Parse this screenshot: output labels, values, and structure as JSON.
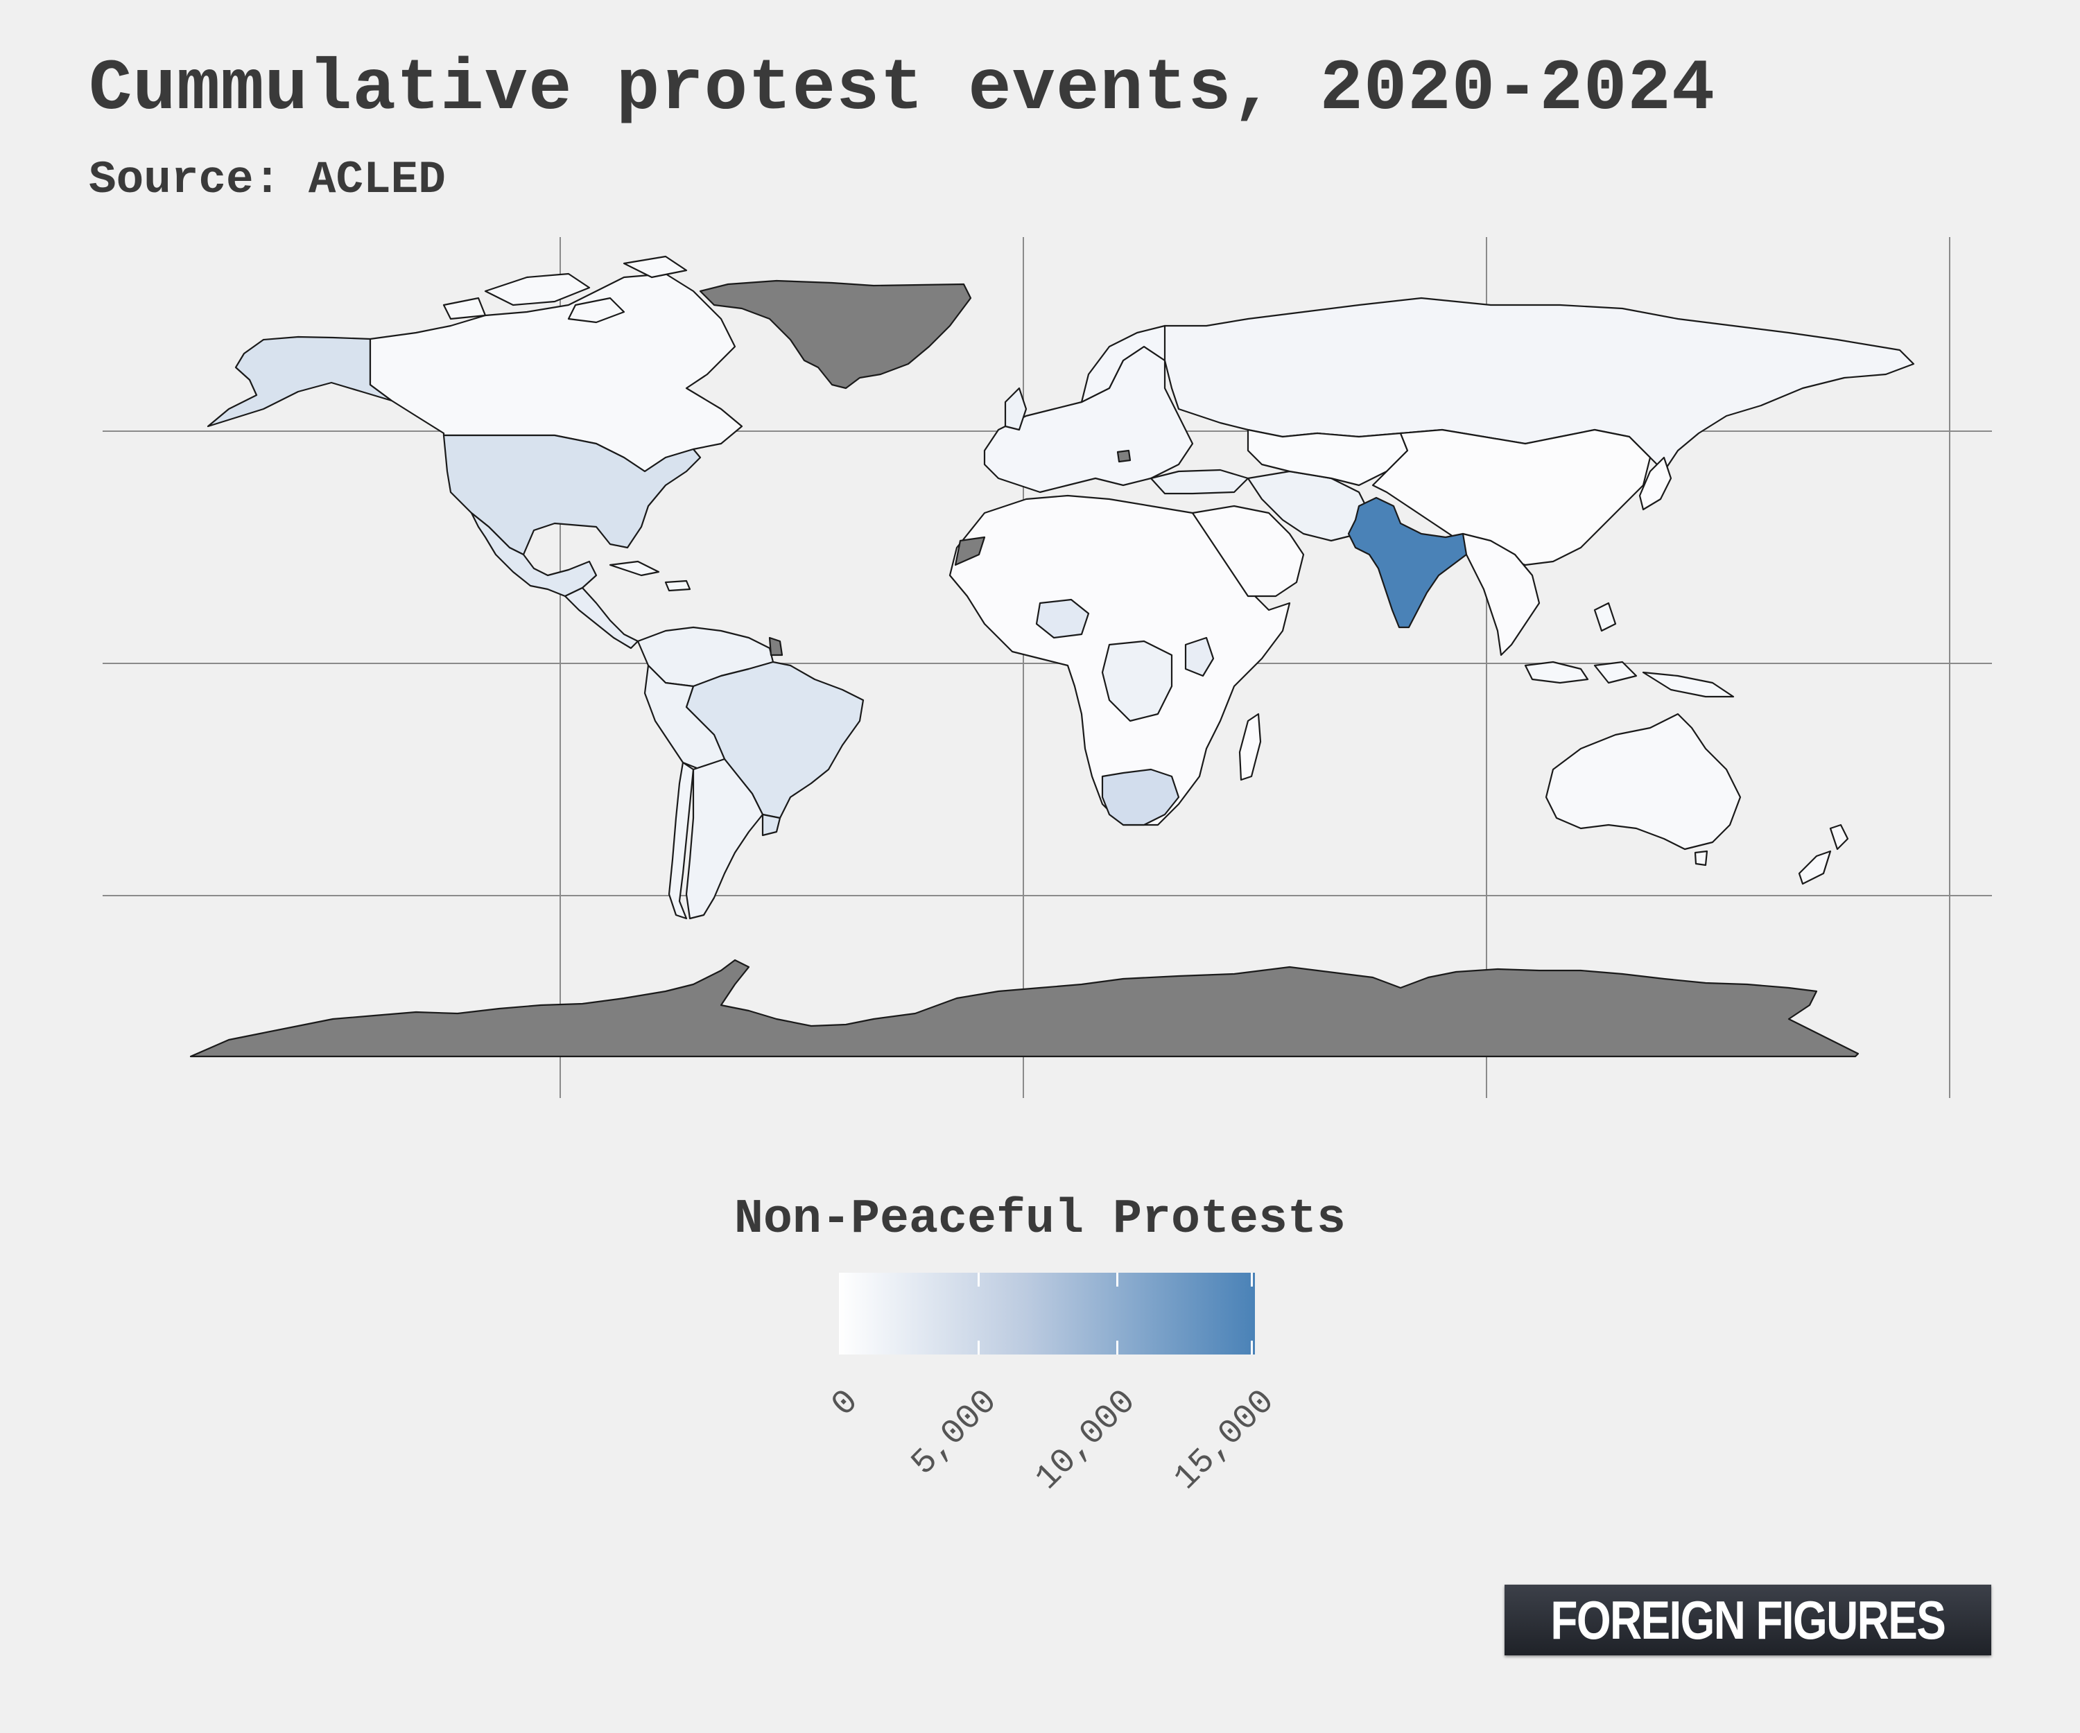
{
  "title": "Cummulative protest events, 2020-2024",
  "subtitle": "Source: ACLED",
  "legend": {
    "title": "Non-Peaceful Protests",
    "ticks": [
      "0",
      "5,000",
      "10,000",
      "15,000"
    ],
    "tick_values": [
      0,
      5000,
      10000,
      15000
    ],
    "range": [
      0,
      15000
    ],
    "color_low": "#ffffff",
    "color_high": "#4a82b7"
  },
  "map": {
    "projection": "equirectangular",
    "no_data_color": "#7f7f7f",
    "land_outline_color": "#1a1a1a",
    "graticule_color": "#888888",
    "regions": [
      {
        "name": "India",
        "level": "highest",
        "color": "#4a82b7"
      },
      {
        "name": "United States",
        "level": "low",
        "color": "#d8e2ee"
      },
      {
        "name": "Brazil",
        "level": "low",
        "color": "#dde6f1"
      },
      {
        "name": "South Africa",
        "level": "low",
        "color": "#d2dded"
      },
      {
        "name": "Mexico",
        "level": "low",
        "color": "#e0e8f2"
      },
      {
        "name": "Alaska",
        "level": "low",
        "color": "#d8e2ee"
      },
      {
        "name": "Argentina",
        "level": "very low",
        "color": "#f0f3f8"
      },
      {
        "name": "Russia",
        "level": "very low",
        "color": "#f3f5f9"
      },
      {
        "name": "Canada",
        "level": "very low",
        "color": "#f8f9fb"
      },
      {
        "name": "China",
        "level": "very low",
        "color": "#fcfcfd"
      },
      {
        "name": "Australia",
        "level": "very low",
        "color": "#f8f9fb"
      },
      {
        "name": "Greenland",
        "level": "no data",
        "color": "#7f7f7f"
      },
      {
        "name": "Antarctica",
        "level": "no data",
        "color": "#7f7f7f"
      }
    ]
  },
  "logo": {
    "text": "FOREIGN FIGURES"
  }
}
